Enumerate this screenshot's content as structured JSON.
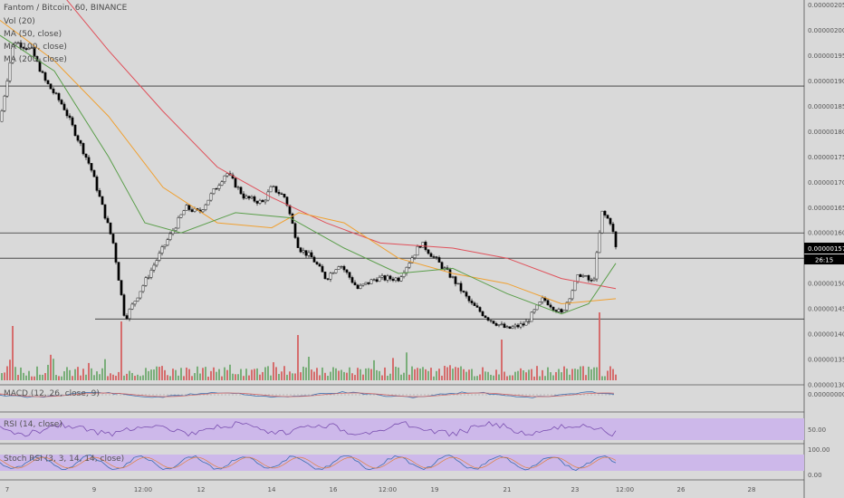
{
  "header": {
    "symbol_line": "Fantom / Bitcoin, 60, BINANCE",
    "indicators": [
      "Vol (20)",
      "MA (50, close)",
      "MA (100, close)",
      "MA (200, close)"
    ]
  },
  "price_axis": {
    "ticks": [
      "0.00000205",
      "0.00000200",
      "0.00000195",
      "0.00000190",
      "0.00000185",
      "0.00000180",
      "0.00000175",
      "0.00000170",
      "0.00000165",
      "0.00000160",
      "0.00000150",
      "0.00000145",
      "0.00000140",
      "0.00000135",
      "0.00000130"
    ],
    "last_price": "0.00000157",
    "countdown": "26:15",
    "last_color": "#000000"
  },
  "macd": {
    "label": "MACD (12, 26, close, 9)",
    "axis_tick": "0.00000000"
  },
  "rsi": {
    "label": "RSI (14, close)",
    "axis_tick": "50.00"
  },
  "stoch": {
    "label": "Stoch RSI (3, 3, 14, 14, close)",
    "axis_ticks": [
      "100.00",
      "0.00"
    ]
  },
  "time_axis": [
    "7",
    "9",
    "12:00",
    "12",
    "14",
    "16",
    "12:00",
    "19",
    "21",
    "23",
    "12:00",
    "26",
    "28"
  ],
  "colors": {
    "up": "#ffffff",
    "down": "#000000",
    "ma50": "#5a9e4a",
    "ma100": "#f0a030",
    "ma200": "#e0505a",
    "vol_up": "#6fa86f",
    "vol_down": "#d46060",
    "band": "#cdb8ea"
  },
  "chart_data": {
    "type": "candlestick",
    "title": "Fantom / Bitcoin, 60, BINANCE",
    "ylim": [
      1.3e-06,
      2.06e-06
    ],
    "anchors_x": [
      0,
      15,
      35,
      50,
      70,
      100,
      125,
      138,
      150,
      180,
      205,
      220,
      235,
      250,
      270,
      290,
      300,
      315,
      330,
      345,
      360,
      375,
      395,
      415,
      440,
      465,
      480,
      500,
      520,
      540,
      560,
      580,
      600,
      620,
      640,
      655,
      665,
      675,
      680
    ],
    "anchors_price": [
      1.82e-06,
      1.98e-06,
      1.96e-06,
      1.9e-06,
      1.85e-06,
      1.73e-06,
      1.58e-06,
      1.43e-06,
      1.47e-06,
      1.57e-06,
      1.65e-06,
      1.64e-06,
      1.68e-06,
      1.72e-06,
      1.67e-06,
      1.66e-06,
      1.69e-06,
      1.67e-06,
      1.57e-06,
      1.55e-06,
      1.51e-06,
      1.54e-06,
      1.49e-06,
      1.51e-06,
      1.51e-06,
      1.58e-06,
      1.55e-06,
      1.51e-06,
      1.46e-06,
      1.43e-06,
      1.41e-06,
      1.42e-06,
      1.47e-06,
      1.44e-06,
      1.52e-06,
      1.5e-06,
      1.64e-06,
      1.62e-06,
      1.57e-06
    ],
    "ma50": [
      [
        0,
        1.99e-06
      ],
      [
        60,
        1.92e-06
      ],
      [
        120,
        1.75e-06
      ],
      [
        160,
        1.62e-06
      ],
      [
        200,
        1.6e-06
      ],
      [
        260,
        1.64e-06
      ],
      [
        320,
        1.63e-06
      ],
      [
        380,
        1.57e-06
      ],
      [
        440,
        1.52e-06
      ],
      [
        500,
        1.53e-06
      ],
      [
        560,
        1.48e-06
      ],
      [
        620,
        1.44e-06
      ],
      [
        650,
        1.46e-06
      ],
      [
        680,
        1.54e-06
      ]
    ],
    "ma100": [
      [
        0,
        2.02e-06
      ],
      [
        60,
        1.94e-06
      ],
      [
        120,
        1.83e-06
      ],
      [
        180,
        1.69e-06
      ],
      [
        240,
        1.62e-06
      ],
      [
        300,
        1.61e-06
      ],
      [
        330,
        1.64e-06
      ],
      [
        380,
        1.62e-06
      ],
      [
        440,
        1.55e-06
      ],
      [
        500,
        1.52e-06
      ],
      [
        560,
        1.5e-06
      ],
      [
        620,
        1.46e-06
      ],
      [
        680,
        1.47e-06
      ]
    ],
    "ma200": [
      [
        60,
        2.09e-06
      ],
      [
        120,
        1.96e-06
      ],
      [
        180,
        1.84e-06
      ],
      [
        240,
        1.73e-06
      ],
      [
        300,
        1.67e-06
      ],
      [
        360,
        1.62e-06
      ],
      [
        420,
        1.58e-06
      ],
      [
        500,
        1.57e-06
      ],
      [
        560,
        1.55e-06
      ],
      [
        620,
        1.51e-06
      ],
      [
        680,
        1.49e-06
      ]
    ],
    "hlines": [
      1.89e-06,
      1.6e-06,
      1.55e-06,
      1.43e-06
    ],
    "volume": {
      "ylim": [
        0,
        100
      ],
      "spikes": [
        [
          15,
          60
        ],
        [
          135,
          65
        ],
        [
          330,
          50
        ],
        [
          555,
          45
        ],
        [
          662,
          75
        ]
      ]
    },
    "rsi_range": [
      30,
      70
    ],
    "stoch_range": [
      20,
      80
    ]
  }
}
